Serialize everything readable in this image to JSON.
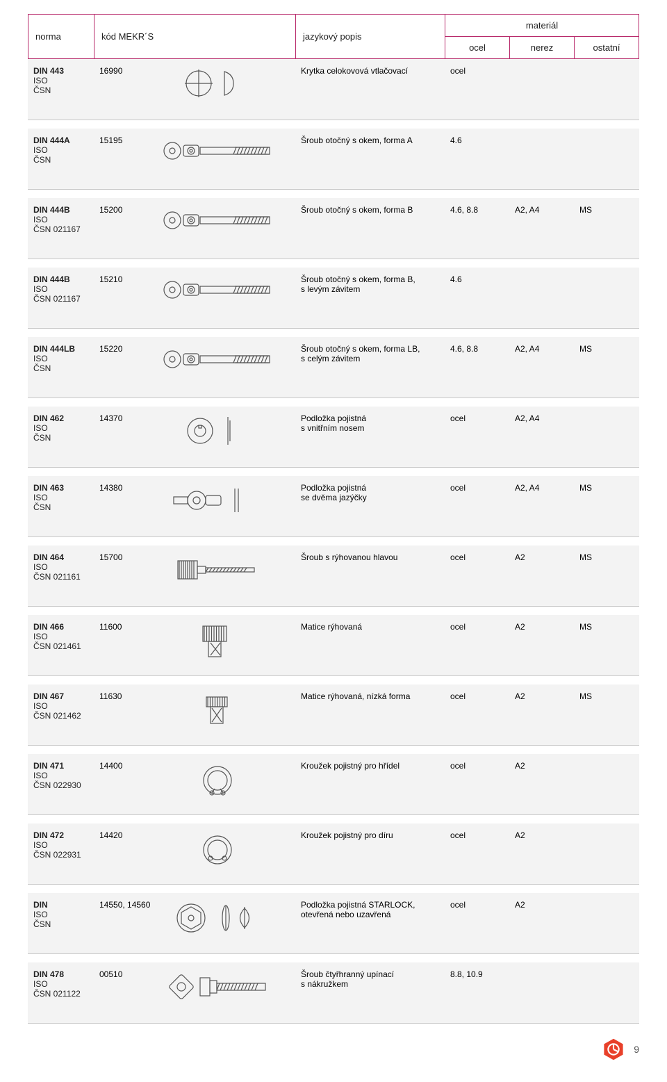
{
  "header": {
    "norma": "norma",
    "kod": "kód MEKR´S",
    "popis": "jazykový popis",
    "material": "materiál",
    "ocel": "ocel",
    "nerez": "nerez",
    "ostatni": "ostatní"
  },
  "colors": {
    "header_border": "#b82a6b",
    "row_bg": "#f3f3f3",
    "row_border": "#c8c8c8",
    "text": "#222222",
    "logo": "#e8402a"
  },
  "rows": [
    {
      "din": "DIN 443",
      "iso": "ISO",
      "csn": "ČSN",
      "code": "16990",
      "icon": "cap",
      "popis": "Krytka celokovová vtlačovací",
      "ocel": "ocel",
      "nerez": "",
      "ostatni": ""
    },
    {
      "din": "DIN 444A",
      "iso": "ISO",
      "csn": "ČSN",
      "code": "15195",
      "icon": "eyebolt",
      "popis": "Šroub otočný s okem, forma A",
      "ocel": "4.6",
      "nerez": "",
      "ostatni": ""
    },
    {
      "din": "DIN 444B",
      "iso": "ISO",
      "csn": "ČSN 021167",
      "code": "15200",
      "icon": "eyebolt",
      "popis": "Šroub otočný s okem, forma B",
      "ocel": "4.6, 8.8",
      "nerez": "A2, A4",
      "ostatni": "MS"
    },
    {
      "din": "DIN 444B",
      "iso": "ISO",
      "csn": "ČSN 021167",
      "code": "15210",
      "icon": "eyebolt",
      "popis": "Šroub otočný s okem, forma B,\ns levým závitem",
      "ocel": "4.6",
      "nerez": "",
      "ostatni": ""
    },
    {
      "din": "DIN 444LB",
      "iso": "ISO",
      "csn": "ČSN",
      "code": "15220",
      "icon": "eyebolt",
      "popis": "Šroub otočný s okem, forma LB,\ns celým závitem",
      "ocel": "4.6, 8.8",
      "nerez": "A2, A4",
      "ostatni": "MS"
    },
    {
      "din": "DIN 462",
      "iso": "ISO",
      "csn": "ČSN",
      "code": "14370",
      "icon": "washer-tab",
      "popis": "Podložka pojistná\ns vnitřním nosem",
      "ocel": "ocel",
      "nerez": "A2, A4",
      "ostatni": ""
    },
    {
      "din": "DIN 463",
      "iso": "ISO",
      "csn": "ČSN",
      "code": "14380",
      "icon": "washer-twotab",
      "popis": "Podložka pojistná\nse dvěma jazýčky",
      "ocel": "ocel",
      "nerez": "A2, A4",
      "ostatni": "MS"
    },
    {
      "din": "DIN 464",
      "iso": "ISO",
      "csn": "ČSN 021161",
      "code": "15700",
      "icon": "knurled-screw",
      "popis": "Šroub s rýhovanou hlavou",
      "ocel": "ocel",
      "nerez": "A2",
      "ostatni": "MS"
    },
    {
      "din": "DIN 466",
      "iso": "ISO",
      "csn": "ČSN 021461",
      "code": "11600",
      "icon": "knurled-nut-tall",
      "popis": "Matice rýhovaná",
      "ocel": "ocel",
      "nerez": "A2",
      "ostatni": "MS"
    },
    {
      "din": "DIN 467",
      "iso": "ISO",
      "csn": "ČSN 021462",
      "code": "11630",
      "icon": "knurled-nut-low",
      "popis": "Matice rýhovaná, nízká forma",
      "ocel": "ocel",
      "nerez": "A2",
      "ostatni": "MS"
    },
    {
      "din": "DIN 471",
      "iso": "ISO",
      "csn": "ČSN 022930",
      "code": "14400",
      "icon": "circlip-ext",
      "popis": "Kroužek pojistný pro hřídel",
      "ocel": "ocel",
      "nerez": "A2",
      "ostatni": ""
    },
    {
      "din": "DIN 472",
      "iso": "ISO",
      "csn": "ČSN 022931",
      "code": "14420",
      "icon": "circlip-int",
      "popis": "Kroužek pojistný pro díru",
      "ocel": "ocel",
      "nerez": "A2",
      "ostatni": ""
    },
    {
      "din": "DIN",
      "iso": "ISO",
      "csn": "ČSN",
      "code": "14550, 14560",
      "icon": "starlock",
      "popis": "Podložka pojistná STARLOCK,\notevřená nebo uzavřená",
      "ocel": "ocel",
      "nerez": "A2",
      "ostatni": ""
    },
    {
      "din": "DIN 478",
      "iso": "ISO",
      "csn": "ČSN 021122",
      "code": "00510",
      "icon": "square-collar-bolt",
      "popis": "Šroub čtyřhranný upínací\ns nákružkem",
      "ocel": "8.8, 10.9",
      "nerez": "",
      "ostatni": ""
    }
  ],
  "page_number": "9"
}
